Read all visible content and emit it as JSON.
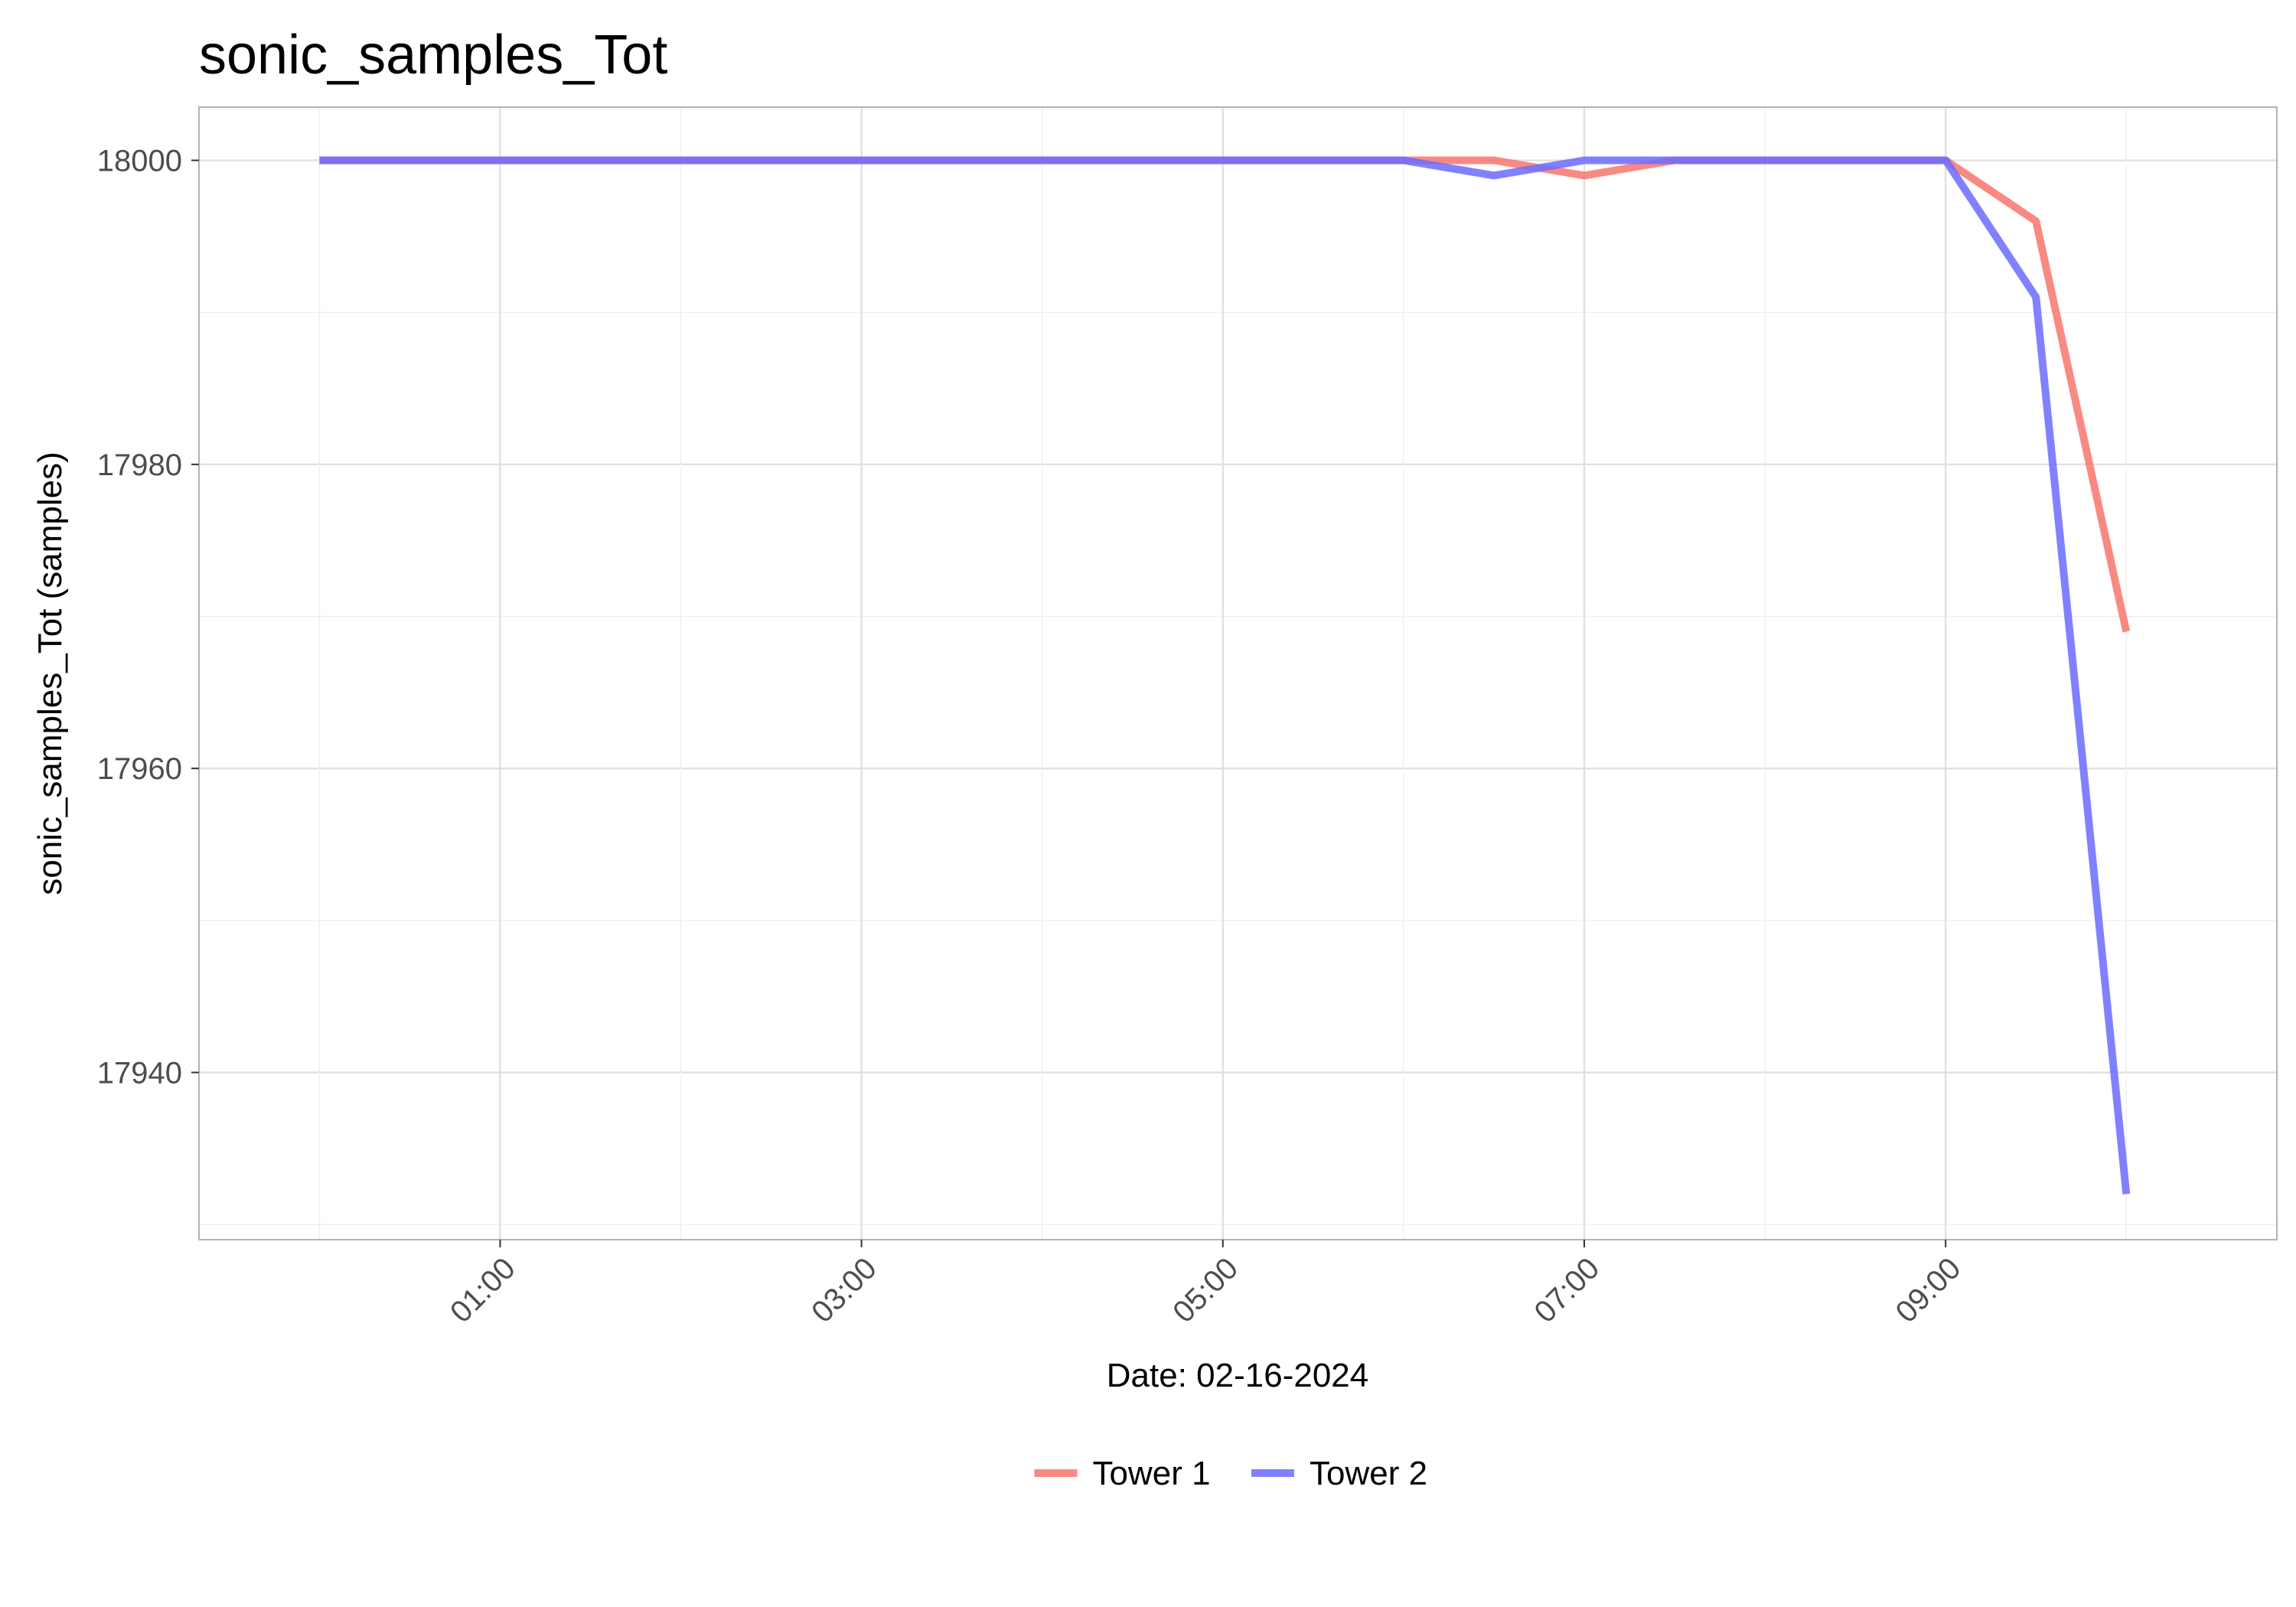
{
  "chart_data": {
    "type": "line",
    "title": "sonic_samples_Tot",
    "xlabel": "Date: 02-16-2024",
    "ylabel": "sonic_samples_Tot (samples)",
    "x_ticks": [
      "01:00",
      "03:00",
      "05:00",
      "07:00",
      "09:00"
    ],
    "y_ticks": [
      17940,
      17960,
      17980,
      18000
    ],
    "ylim": [
      17929,
      18003.5
    ],
    "xlim": [
      "-00:40",
      "10:50"
    ],
    "grid": true,
    "legend_position": "bottom",
    "x": [
      "00:00",
      "00:30",
      "01:00",
      "01:30",
      "02:00",
      "02:30",
      "03:00",
      "03:30",
      "04:00",
      "04:30",
      "05:00",
      "05:30",
      "06:00",
      "06:30",
      "07:00",
      "07:30",
      "08:00",
      "08:30",
      "09:00",
      "09:30",
      "10:00"
    ],
    "series": [
      {
        "name": "Tower 1",
        "color": "#f8766d",
        "values": [
          18000,
          18000,
          18000,
          18000,
          18000,
          18000,
          18000,
          18000,
          18000,
          18000,
          18000,
          18000,
          18000,
          18000,
          17999,
          18000,
          18000,
          18000,
          18000,
          17996,
          17969
        ]
      },
      {
        "name": "Tower 2",
        "color": "#6b6bff",
        "values": [
          18000,
          18000,
          18000,
          18000,
          18000,
          18000,
          18000,
          18000,
          18000,
          18000,
          18000,
          18000,
          18000,
          17999,
          18000,
          18000,
          18000,
          18000,
          18000,
          17991,
          17932
        ]
      }
    ]
  }
}
